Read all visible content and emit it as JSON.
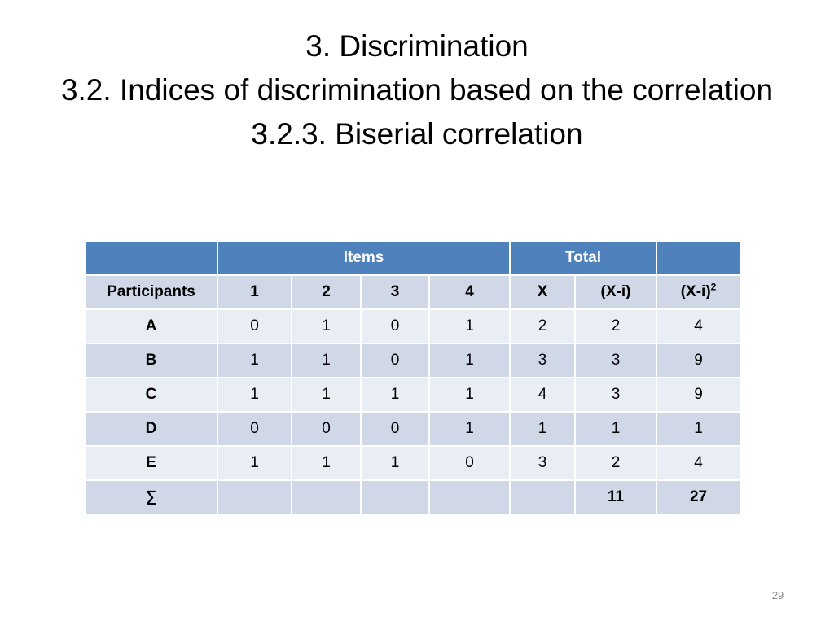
{
  "slide": {
    "title_lines": [
      "3. Discrimination",
      "3.2. Indices of discrimination based on the correlation",
      "3.2.3. Biserial correlation"
    ],
    "page_number": "29"
  },
  "table": {
    "group_header": {
      "items": "Items",
      "total": "Total"
    },
    "columns": {
      "participants": "Participants",
      "c1": "1",
      "c2": "2",
      "c3": "3",
      "c4": "4",
      "x": "X",
      "xi": "(X-i)",
      "xi2_base": "(X-i)",
      "xi2_exp": "2"
    },
    "rows": [
      {
        "name": "A",
        "v1": "0",
        "v2": "1",
        "v3": "0",
        "v4": "1",
        "x": "2",
        "xi": "2",
        "xi2": "4"
      },
      {
        "name": "B",
        "v1": "1",
        "v2": "1",
        "v3": "0",
        "v4": "1",
        "x": "3",
        "xi": "3",
        "xi2": "9"
      },
      {
        "name": "C",
        "v1": "1",
        "v2": "1",
        "v3": "1",
        "v4": "1",
        "x": "4",
        "xi": "3",
        "xi2": "9"
      },
      {
        "name": "D",
        "v1": "0",
        "v2": "0",
        "v3": "0",
        "v4": "1",
        "x": "1",
        "xi": "1",
        "xi2": "1"
      },
      {
        "name": "E",
        "v1": "1",
        "v2": "1",
        "v3": "1",
        "v4": "0",
        "x": "3",
        "xi": "2",
        "xi2": "4"
      }
    ],
    "sum_row": {
      "label": "∑",
      "xi": "11",
      "xi2": "27"
    }
  },
  "colors": {
    "header_bg": "#4f81bd",
    "row_band_dark": "#d0d8e8",
    "row_band_light": "#e9edf4"
  }
}
